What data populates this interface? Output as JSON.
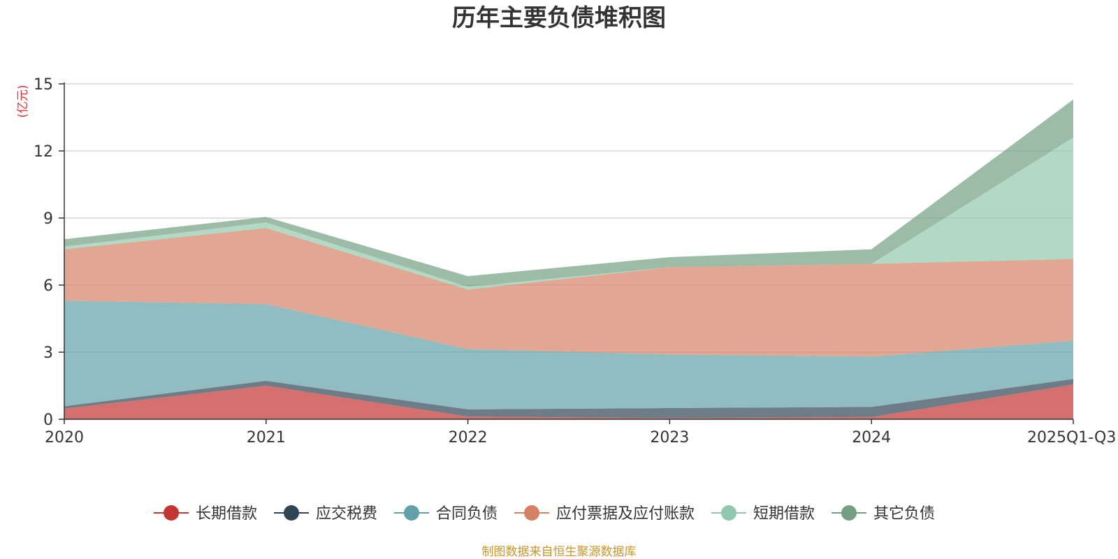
{
  "chart_data": {
    "type": "area",
    "stacked": true,
    "title": "历年主要负债堆积图",
    "ylabel": "(亿元)",
    "categories": [
      "2020",
      "2021",
      "2022",
      "2023",
      "2024",
      "2025Q1-Q3"
    ],
    "ylim": [
      0,
      15
    ],
    "yticks": [
      0,
      3,
      6,
      9,
      12,
      15
    ],
    "grid": true,
    "legend_position": "bottom",
    "series": [
      {
        "name": "长期借款",
        "color": "#c23531",
        "values": [
          0.48,
          1.5,
          0.12,
          0.05,
          0.1,
          1.55
        ]
      },
      {
        "name": "应交税费",
        "color": "#2f4554",
        "values": [
          0.1,
          0.22,
          0.32,
          0.45,
          0.45,
          0.25
        ]
      },
      {
        "name": "合同负债",
        "color": "#61a0a8",
        "values": [
          4.72,
          3.43,
          2.7,
          2.4,
          2.25,
          1.72
        ]
      },
      {
        "name": "应付票据及应付账款",
        "color": "#d48265",
        "values": [
          2.3,
          3.4,
          2.66,
          3.9,
          4.15,
          3.65
        ]
      },
      {
        "name": "短期借款",
        "color": "#91c7ae",
        "values": [
          0.12,
          0.25,
          0.12,
          0.0,
          0.0,
          5.43
        ]
      },
      {
        "name": "其它负债",
        "color": "#749f83",
        "values": [
          0.33,
          0.25,
          0.48,
          0.45,
          0.65,
          1.7
        ]
      }
    ]
  },
  "source_note": "制图数据来自恒生聚源数据库"
}
